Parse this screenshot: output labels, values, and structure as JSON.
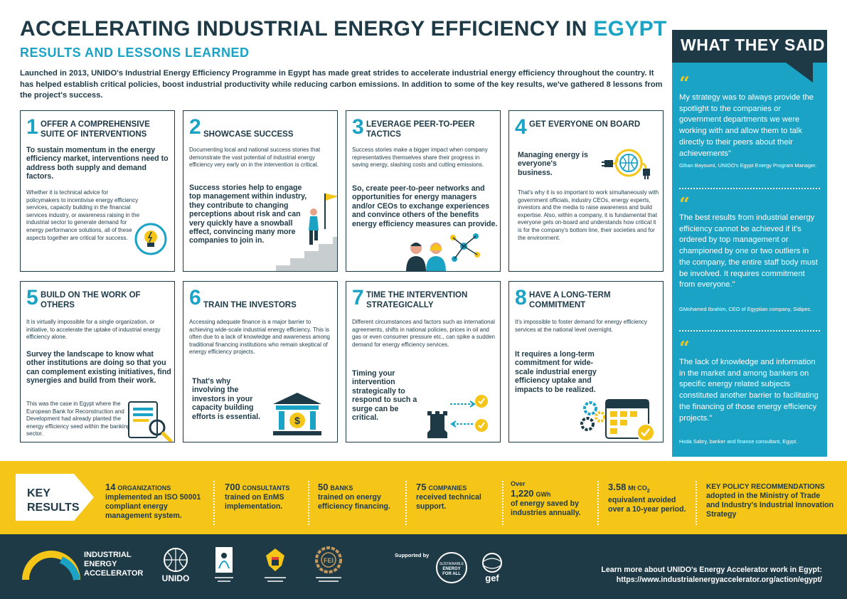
{
  "header": {
    "title_main": "ACCELERATING INDUSTRIAL ENERGY EFFICIENCY IN",
    "title_highlight": "EGYPT",
    "subtitle": "RESULTS AND LESSONS LEARNED",
    "intro": "Launched in 2013, UNIDO's Industrial Energy Efficiency Programme in Egypt has made great strides to accelerate industrial energy efficiency throughout the country. It has helped establish critical policies, boost industrial productivity while reducing carbon emissions. In addition to some of the key results, we've gathered 8 lessons from the project's success."
  },
  "lessons": [
    {
      "number": "1",
      "title": "OFFER A COMPREHENSIVE SUITE OF INTERVENTIONS",
      "bold": "To sustain momentum in the energy efficiency market, interventions need to address both supply and demand factors.",
      "text": "Whether it is technical advice for policymakers to incentivise energy efficiency services, capacity building in the financial services industry, or awareness raising in the industrial sector to generate demand for energy performance solutions, all of these aspects together are critical for success."
    },
    {
      "number": "2",
      "title": "SHOWCASE SUCCESS",
      "text": "Documenting local and national success stories that demonstrate the vast potential of industrial energy efficiency very early on in the intervention is critical.",
      "bold": "Success stories help to engage top management within industry, they contribute to changing perceptions about risk and can very quickly have a snowball effect, convincing many more companies to join in."
    },
    {
      "number": "3",
      "title": "LEVERAGE PEER-TO-PEER TACTICS",
      "text": "Success stories make a bigger impact when company representatives themselves share their progress in saving energy, slashing costs and cutting emissions.",
      "bold": "So, create peer-to-peer networks and opportunities for energy managers and/or CEOs to exchange experiences and convince others of the benefits energy efficiency measures can provide."
    },
    {
      "number": "4",
      "title": "GET EVERYONE ON BOARD",
      "bold": "Managing energy is everyone's business.",
      "text": "That's why it is so important to work simultaneously with government officials, industry CEOs, energy experts, investors and the media to raise awareness and build expertise. Also, within a company, it is fundamental that everyone gets on-board and understands how critical it is for the company's bottom line, their societies and for the environment."
    },
    {
      "number": "5",
      "title": "BUILD ON THE WORK OF OTHERS",
      "text": "It is virtually impossible for a single organization, or initiative, to accelerate the uptake of industrial energy efficiency alone.",
      "bold": "Survey the landscape to know what other institutions are doing so that you can complement existing initiatives, find synergies and build from their work.",
      "text2": "This was the case in Egypt where the European Bank for Reconstruction and Development had already planted the energy efficiency seed within the banking sector."
    },
    {
      "number": "6",
      "title": "TRAIN THE INVESTORS",
      "text": "Accessing adequate finance is a major barrier to achieving wide-scale industrial energy efficiency. This is often due to a lack of knowledge and awareness among traditional financing institutions who remain skeptical of energy efficiency projects.",
      "bold": "That's why involving the investors in your capacity building efforts is essential."
    },
    {
      "number": "7",
      "title": "TIME THE INTERVENTION STRATEGICALLY",
      "text": "Different circumstances and factors such as international agreements, shifts in national policies, prices in oil and gas or even consumer pressure etc., can spike a sudden demand for energy efficiency services.",
      "bold": "Timing your intervention strategically to respond to such a surge can be critical."
    },
    {
      "number": "8",
      "title": "HAVE A LONG-TERM COMMITMENT",
      "text": "It's impossible to foster demand for energy efficiency services at the national level overnight.",
      "bold": "It requires a long-term commitment for wide-scale industrial energy efficiency uptake and impacts to be realized."
    }
  ],
  "sidebar": {
    "heading": "WHAT THEY SAID",
    "quote_mark": "“",
    "quotes": [
      {
        "text": "My strategy was to always provide the spotlight to the companies or government departments we were working with and allow them to talk directly to their peers about their achievements\"",
        "attribution": "Gihan Bayoumi, UNIDO's Egypt Energy Program Manager."
      },
      {
        "text": "The best results from industrial energy efficiency cannot be achieved if it's ordered by top management or championed by one or two outliers in the company, the entire staff body must be involved. It requires commitment from everyone.\"",
        "attribution": "GMohamed Ibrahim, CEO of Egyptian company, Sidipec."
      },
      {
        "text": "The lack of knowledge and information in the market and among bankers on specific energy related subjects constituted another barrier to facilitating the financing of those energy efficiency projects.\"",
        "attribution": "Hoda Sabry, banker and finance consultant, Egypt."
      }
    ]
  },
  "key_results": {
    "label_line1": "KEY",
    "label_line2": "RESULTS",
    "items": [
      {
        "figure": "14",
        "unit": "ORGANIZATIONS",
        "text": "implemented an ISO 50001 compliant energy management system."
      },
      {
        "figure": "700",
        "unit": "CONSULTANTS",
        "text": "trained on EnMS implementation."
      },
      {
        "figure": "50",
        "unit": "BANKS",
        "text": "trained on energy efficiency financing."
      },
      {
        "figure": "75",
        "unit": "COMPANIES",
        "text": "received technical support."
      },
      {
        "pre": "Over",
        "figure": "1,220",
        "unit": "GWh",
        "text": "of energy saved by industries annually."
      },
      {
        "figure": "3.58",
        "unit": "Mt CO",
        "unit_sub": "2",
        "text": "equivalent avoided over a 10-year period."
      },
      {
        "figure": "KEY POLICY RECOMMENDATIONS",
        "text": "adopted in the Ministry of Trade and Industry's Industrial Innovation Strategy"
      }
    ]
  },
  "footer": {
    "brand_line1": "INDUSTRIAL",
    "brand_line2": "ENERGY",
    "brand_line3": "ACCELERATOR",
    "unido": "UNIDO",
    "fei": "FEI",
    "supported_by": "Supported by",
    "seforall_line1": "SUSTAINABLE",
    "seforall_line2": "ENERGY",
    "seforall_line3": "FOR ALL",
    "gef": "gef",
    "learn_more": "Learn more about UNIDO's Energy Accelerator work in Egypt:",
    "url": "https://www.industrialenergyaccelerator.org/action/egypt/"
  },
  "colors": {
    "navy": "#1e3a47",
    "teal": "#1ba3c6",
    "yellow": "#f5c518"
  },
  "icons": [
    "lightbulb-icon",
    "staircase-flag-icon",
    "people-network-icon",
    "plug-globe-icon",
    "document-magnifier-icon",
    "bank-dollar-icon",
    "chess-rook-icon",
    "calendar-gears-icon"
  ]
}
